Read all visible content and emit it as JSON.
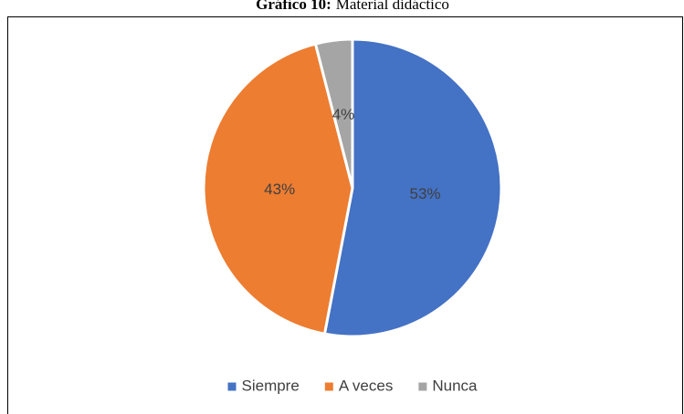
{
  "chart_data": {
    "type": "pie",
    "title_prefix": "Gráfico 10:",
    "title": "Material didáctico",
    "categories": [
      "Siempre",
      "A veces",
      "Nunca"
    ],
    "values": [
      53,
      43,
      4
    ],
    "value_labels": [
      "53%",
      "43%",
      "4%"
    ],
    "colors": [
      "#4472c4",
      "#ed7d31",
      "#a5a5a5"
    ],
    "legend": "bottom"
  }
}
